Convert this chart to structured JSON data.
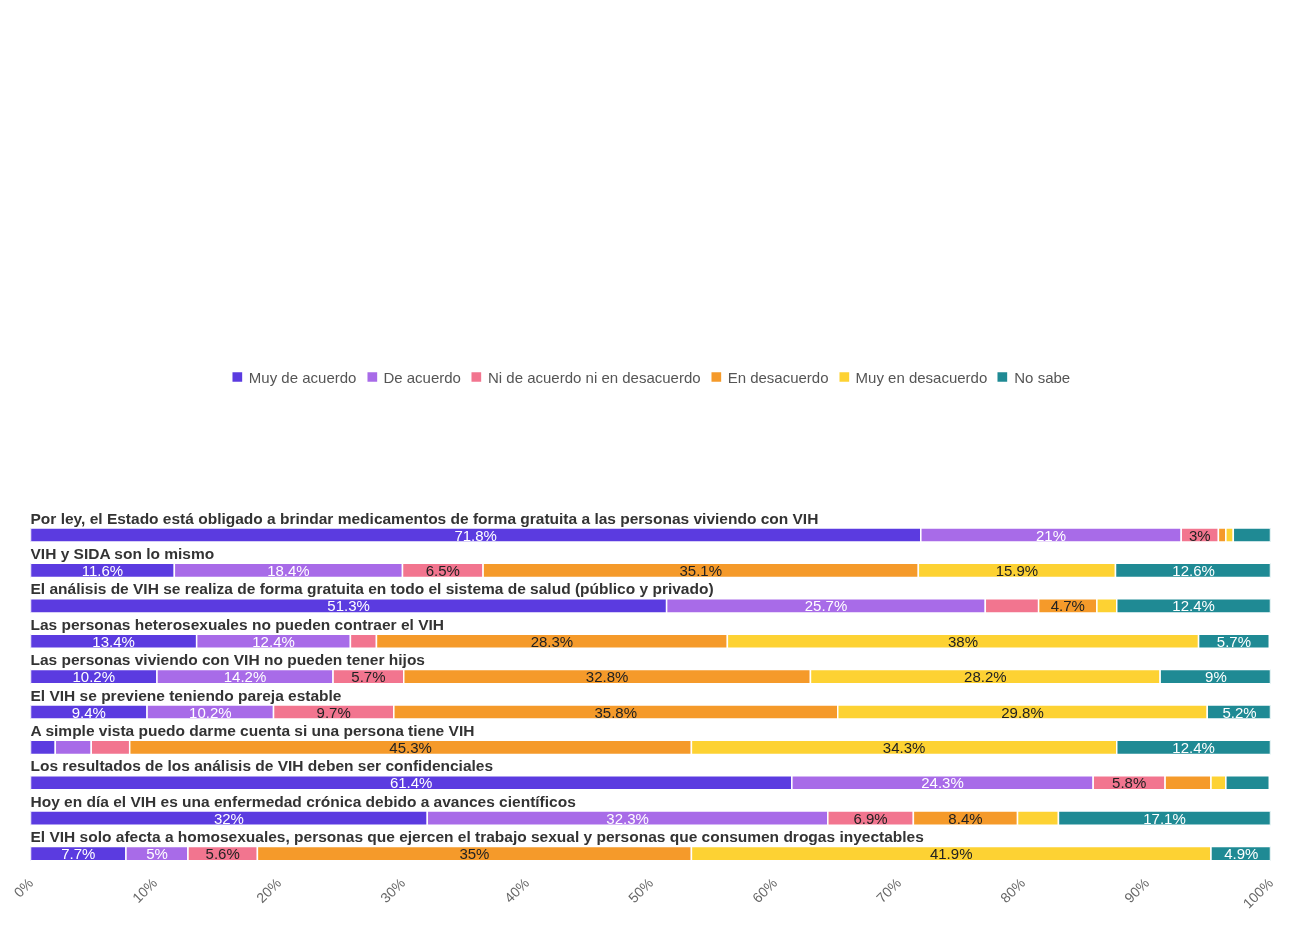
{
  "chart_data": {
    "type": "bar",
    "orientation": "horizontal",
    "stacked": true,
    "legend": "top",
    "grid": false,
    "tick_labels": "x",
    "categories": [
      "Por ley, el Estado está obligado a brindar medicamentos de forma gratuita a las personas viviendo con VIH",
      "VIH y SIDA son lo mismo",
      "El análisis de VIH se realiza de forma gratuita en todo el sistema de salud (público y privado)",
      "Las personas heterosexuales no pueden contraer el VIH",
      "Las personas viviendo con VIH no pueden tener hijos",
      "El VIH se previene teniendo pareja estable",
      "A simple vista puedo darme cuenta si una persona tiene VIH",
      "Los resultados de los análisis de VIH deben ser confidenciales",
      "Hoy en día el VIH es una enfermedad crónica debido a avances científicos",
      "El VIH solo afecta a homosexuales, personas que ejercen el trabajo sexual y personas que consumen drogas inyectables"
    ],
    "xlim": [
      0,
      100
    ],
    "xticks": [
      {
        "value": 0,
        "label": "0%"
      },
      {
        "value": 10,
        "label": "10%"
      },
      {
        "value": 20,
        "label": "20%"
      },
      {
        "value": 30,
        "label": "30%"
      },
      {
        "value": 40,
        "label": "40%"
      },
      {
        "value": 50,
        "label": "50%"
      },
      {
        "value": 60,
        "label": "60%"
      },
      {
        "value": 70,
        "label": "70%"
      },
      {
        "value": 80,
        "label": "80%"
      },
      {
        "value": 90,
        "label": "90%"
      },
      {
        "value": 100,
        "label": "100%"
      }
    ],
    "series": [
      {
        "name": "Muy de acuerdo",
        "color": "#5b3be0",
        "values": [
          71.8,
          11.6,
          51.3,
          13.4,
          10.2,
          9.4,
          2.0,
          61.4,
          32,
          7.7
        ],
        "value_labels": [
          "71.8%",
          "11.6%",
          "51.3%",
          "13.4%",
          "10.2%",
          "9.4%",
          null,
          "61.4%",
          "32%",
          "7.7%"
        ]
      },
      {
        "name": "De acuerdo",
        "color": "#a86be8",
        "values": [
          21,
          18.4,
          25.7,
          12.4,
          14.2,
          10.2,
          2.9,
          24.3,
          32.3,
          5
        ],
        "value_labels": [
          "21%",
          "18.4%",
          "25.7%",
          "12.4%",
          "14.2%",
          "10.2%",
          null,
          "24.3%",
          "32.3%",
          "5%"
        ]
      },
      {
        "name": "Ni de acuerdo ni en desacuerdo",
        "color": "#f2758f",
        "values": [
          3,
          6.5,
          4.3,
          2.1,
          5.7,
          9.7,
          3.1,
          5.8,
          6.9,
          5.6
        ],
        "value_labels": [
          "3%",
          "6.5%",
          null,
          null,
          "5.7%",
          "9.7%",
          null,
          "5.8%",
          "6.9%",
          "5.6%"
        ]
      },
      {
        "name": "En desacuerdo",
        "color": "#f59a2a",
        "values": [
          0.6,
          35.1,
          4.7,
          28.3,
          32.8,
          35.8,
          45.3,
          3.7,
          8.4,
          35
        ],
        "value_labels": [
          null,
          "35.1%",
          "4.7%",
          "28.3%",
          "32.8%",
          "35.8%",
          "45.3%",
          null,
          "8.4%",
          "35%"
        ]
      },
      {
        "name": "Muy en desacuerdo",
        "color": "#fdd233",
        "values": [
          0.6,
          15.9,
          1.6,
          38,
          28.2,
          29.8,
          34.3,
          1.2,
          3.3,
          41.9
        ],
        "value_labels": [
          null,
          "15.9%",
          null,
          "38%",
          "28.2%",
          "29.8%",
          "34.3%",
          null,
          null,
          "41.9%"
        ]
      },
      {
        "name": "No sabe",
        "color": "#1f8a94",
        "values": [
          3.0,
          12.6,
          12.4,
          5.7,
          9,
          5.2,
          12.4,
          3.5,
          17.1,
          4.9
        ],
        "value_labels": [
          null,
          "12.6%",
          "12.4%",
          "5.7%",
          "9%",
          "5.2%",
          "12.4%",
          null,
          "17.1%",
          "4.9%"
        ]
      }
    ]
  }
}
